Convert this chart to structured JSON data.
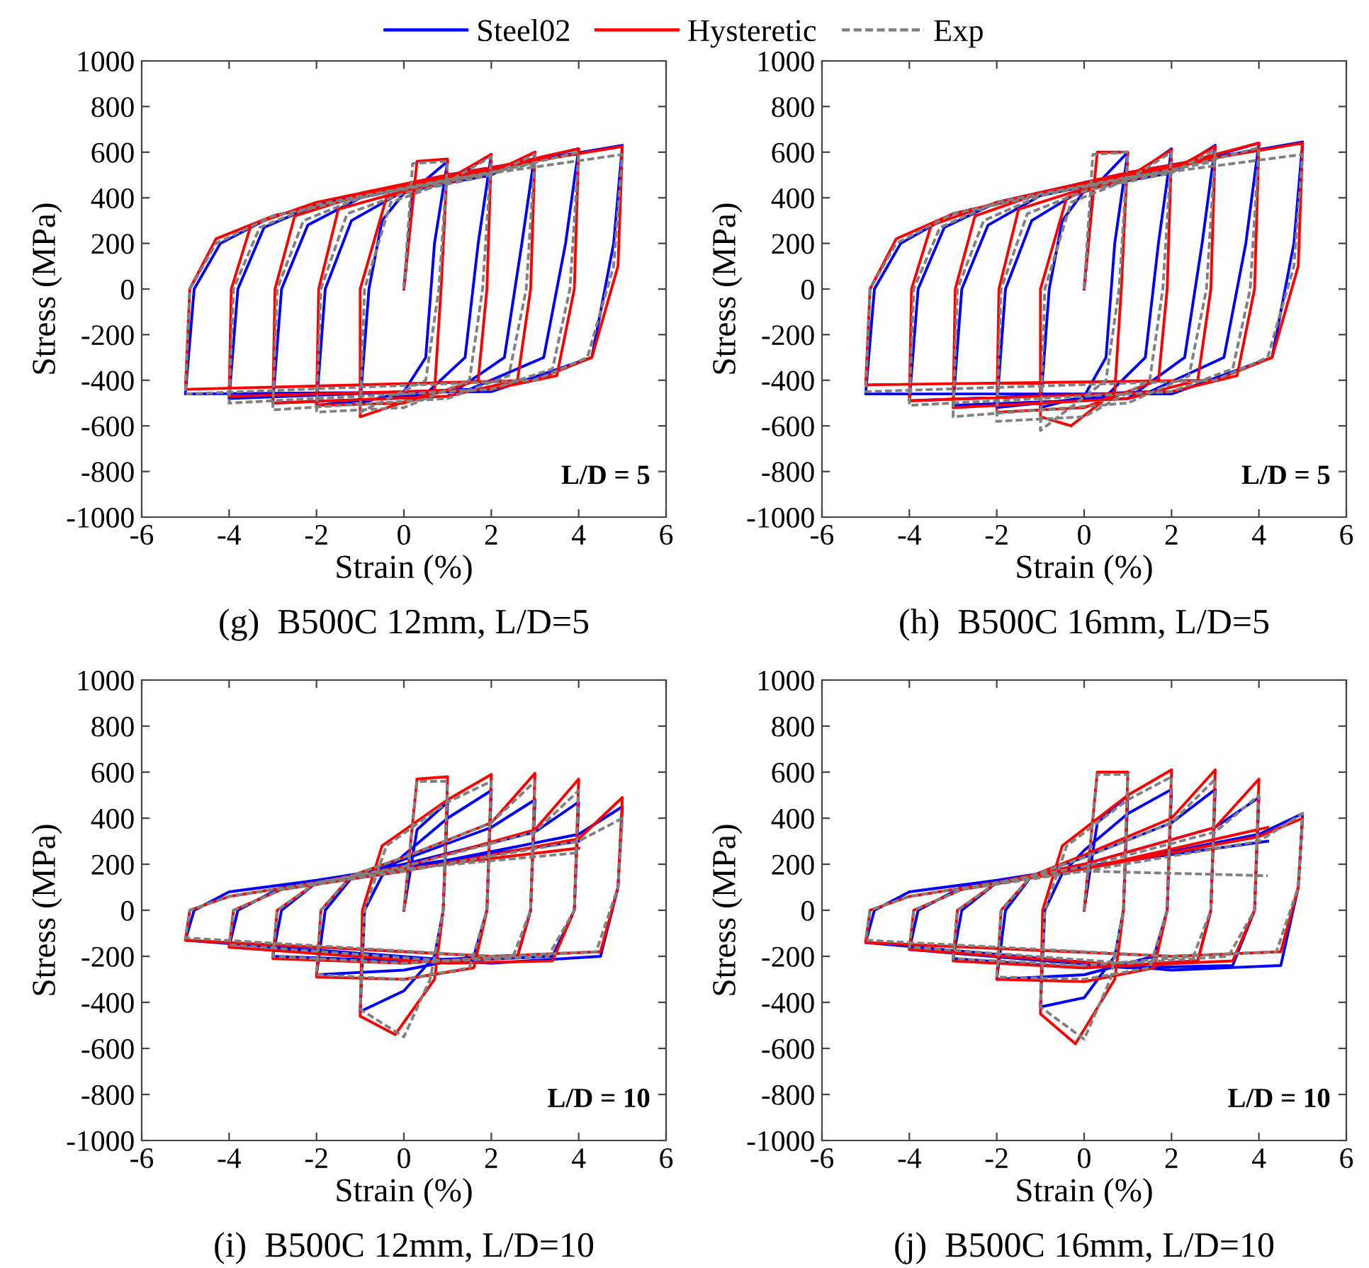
{
  "chart_data": [
    {
      "type": "line",
      "title": "(g)  B500C 12mm, L/D=5",
      "xlabel": "Strain (%)",
      "ylabel": "Stress (MPa)",
      "annotations": [
        "L/D = 5"
      ],
      "xlim": [
        -6,
        6
      ],
      "xticks": [
        -6,
        -4,
        -2,
        0,
        2,
        4,
        6
      ],
      "ylim": [
        -1000,
        1000
      ],
      "yticks": [
        -1000,
        -800,
        -600,
        -400,
        -200,
        0,
        200,
        400,
        600,
        800,
        1000
      ],
      "grid": false,
      "legend": "top",
      "marker": "none",
      "series": [
        {
          "name": "Steel02",
          "color": "#0000ff",
          "line_style": "solid",
          "x": [
            0,
            0.2,
            1,
            0.7,
            0.5,
            0,
            -1,
            -0.8,
            -0.5,
            0,
            1,
            2,
            1.7,
            1.4,
            0.5,
            -2,
            -1.8,
            -1.2,
            0,
            2,
            3,
            2.7,
            2.3,
            1,
            -3,
            -2.8,
            -2.2,
            -1,
            2,
            4,
            3.7,
            3.2,
            1.5,
            -4,
            -3.8,
            -3.2,
            -2,
            1,
            5,
            4.8,
            4.3,
            2,
            -5,
            -4.8,
            -4.2,
            -3,
            0,
            3
          ],
          "values": [
            0,
            430,
            560,
            200,
            -300,
            -450,
            -500,
            0,
            300,
            420,
            470,
            590,
            200,
            -300,
            -460,
            -510,
            0,
            300,
            430,
            500,
            600,
            200,
            -300,
            -470,
            -500,
            0,
            280,
            400,
            520,
            615,
            200,
            -300,
            -440,
            -480,
            0,
            270,
            370,
            500,
            630,
            200,
            -300,
            -450,
            -460,
            0,
            200,
            320,
            450,
            560
          ]
        },
        {
          "name": "Hysteretic",
          "color": "#ff0000",
          "line_style": "solid",
          "x": [
            0,
            0.3,
            1,
            0.85,
            0.7,
            -1,
            -1,
            -0.4,
            1,
            2,
            1.9,
            1.7,
            0,
            -2,
            -1.95,
            -1.5,
            0,
            2,
            3,
            2.9,
            2.6,
            1,
            -3,
            -2.95,
            -2.5,
            -1,
            2,
            4,
            3.9,
            3.5,
            2,
            -4,
            -3.95,
            -3.5,
            -2,
            1,
            5,
            4.9,
            4.3,
            3,
            -5,
            -4.9,
            -4.3,
            -3,
            0,
            3
          ],
          "values": [
            0,
            560,
            570,
            0,
            -450,
            -560,
            0,
            400,
            480,
            590,
            0,
            -400,
            -500,
            -510,
            0,
            350,
            430,
            510,
            600,
            0,
            -400,
            -470,
            -500,
            0,
            320,
            410,
            530,
            615,
            0,
            -380,
            -440,
            -470,
            0,
            280,
            380,
            500,
            625,
            100,
            -300,
            -400,
            -440,
            0,
            220,
            320,
            450,
            560
          ]
        },
        {
          "name": "Exp",
          "color": "#808080",
          "line_style": "dashed",
          "x": [
            0,
            0.2,
            1,
            0.8,
            0.5,
            -1,
            -0.9,
            -0.3,
            1,
            2,
            1.8,
            1.5,
            0,
            -2,
            -1.9,
            -1.3,
            0,
            2,
            3,
            2.8,
            2.4,
            1,
            -3,
            -2.9,
            -2.3,
            -1,
            2,
            4,
            3.8,
            3.4,
            2,
            -4,
            -3.9,
            -3.3,
            -2,
            1,
            5,
            4.8,
            4.2,
            3,
            -5,
            -4.9,
            -4.3,
            -3,
            0,
            3
          ],
          "values": [
            0,
            550,
            560,
            0,
            -400,
            -540,
            0,
            380,
            470,
            580,
            0,
            -400,
            -520,
            -540,
            0,
            330,
            420,
            500,
            590,
            0,
            -380,
            -480,
            -530,
            0,
            300,
            400,
            510,
            600,
            0,
            -350,
            -440,
            -500,
            0,
            270,
            370,
            480,
            590,
            100,
            -300,
            -400,
            -460,
            0,
            200,
            320,
            440,
            550
          ]
        }
      ]
    },
    {
      "type": "line",
      "title": "(h)  B500C 16mm, L/D=5",
      "xlabel": "Strain (%)",
      "ylabel": "Stress (MPa)",
      "annotations": [
        "L/D = 5"
      ],
      "xlim": [
        -6,
        6
      ],
      "xticks": [
        -6,
        -4,
        -2,
        0,
        2,
        4,
        6
      ],
      "ylim": [
        -1000,
        1000
      ],
      "yticks": [
        -1000,
        -800,
        -600,
        -400,
        -200,
        0,
        200,
        400,
        600,
        800,
        1000
      ],
      "grid": false,
      "marker": "none",
      "series": [
        {
          "color": "#0000ff",
          "line_style": "solid",
          "x": [
            0,
            0.2,
            1,
            0.7,
            0.5,
            0,
            -1,
            -0.8,
            -0.5,
            0,
            1,
            2,
            1.7,
            1.4,
            0.5,
            -2,
            -1.8,
            -1.2,
            0,
            2,
            3,
            2.7,
            2.3,
            1,
            -3,
            -2.8,
            -2.2,
            -1,
            2,
            4,
            3.7,
            3.2,
            1.5,
            -4,
            -3.8,
            -3.2,
            -2,
            1,
            5,
            4.8,
            4.3,
            2,
            -5,
            -4.8,
            -4.2,
            -3,
            0,
            3
          ],
          "values": [
            0,
            440,
            600,
            200,
            -300,
            -470,
            -520,
            0,
            300,
            430,
            480,
            615,
            200,
            -300,
            -470,
            -520,
            0,
            300,
            440,
            510,
            630,
            200,
            -300,
            -480,
            -510,
            0,
            280,
            410,
            530,
            640,
            200,
            -300,
            -450,
            -490,
            0,
            270,
            380,
            510,
            645,
            200,
            -300,
            -460,
            -460,
            0,
            200,
            330,
            460,
            570
          ]
        },
        {
          "color": "#ff0000",
          "line_style": "solid",
          "x": [
            0,
            0.3,
            1,
            0.85,
            0.7,
            -0.3,
            -1,
            -1,
            -0.4,
            1,
            2,
            1.9,
            1.7,
            0,
            -2,
            -1.95,
            -1.5,
            0,
            2,
            3,
            2.9,
            2.6,
            1,
            -3,
            -2.95,
            -2.5,
            -1,
            2,
            4,
            3.9,
            3.5,
            2,
            -4,
            -3.95,
            -3.5,
            -2,
            1,
            5,
            4.9,
            4.3,
            3,
            -5,
            -4.9,
            -4.3,
            -3,
            0,
            3
          ],
          "values": [
            0,
            600,
            600,
            0,
            -450,
            -600,
            -560,
            0,
            400,
            490,
            610,
            0,
            -400,
            -520,
            -540,
            0,
            350,
            440,
            520,
            625,
            0,
            -400,
            -480,
            -520,
            0,
            320,
            420,
            540,
            640,
            0,
            -380,
            -450,
            -490,
            0,
            280,
            380,
            510,
            640,
            100,
            -300,
            -400,
            -420,
            0,
            220,
            330,
            460,
            570
          ]
        },
        {
          "color": "#808080",
          "line_style": "dashed",
          "x": [
            0,
            0.2,
            1,
            0.8,
            0.5,
            -1,
            -0.9,
            -0.3,
            1,
            2,
            1.8,
            1.5,
            0,
            -2,
            -1.9,
            -1.3,
            0,
            2,
            3,
            2.8,
            2.4,
            1,
            -3,
            -2.9,
            -2.3,
            -1,
            2,
            4,
            3.8,
            3.4,
            2,
            -4,
            -3.9,
            -3.3,
            -2,
            1,
            5,
            4.8,
            4.2,
            3,
            -5,
            -4.9,
            -4.3,
            -3,
            0,
            3
          ],
          "values": [
            0,
            590,
            600,
            0,
            -400,
            -620,
            0,
            380,
            480,
            600,
            0,
            -400,
            -560,
            -580,
            0,
            330,
            430,
            510,
            610,
            0,
            -380,
            -500,
            -560,
            0,
            300,
            410,
            520,
            620,
            0,
            -350,
            -450,
            -510,
            0,
            270,
            380,
            490,
            590,
            100,
            -300,
            -400,
            -450,
            0,
            200,
            330,
            450,
            560
          ]
        }
      ]
    },
    {
      "type": "line",
      "title": "(i)  B500C 12mm, L/D=10",
      "xlabel": "Strain (%)",
      "ylabel": "Stress (MPa)",
      "annotations": [
        "L/D = 10"
      ],
      "xlim": [
        -6,
        6
      ],
      "xticks": [
        -6,
        -4,
        -2,
        0,
        2,
        4,
        6
      ],
      "ylim": [
        -1000,
        1000
      ],
      "yticks": [
        -1000,
        -800,
        -600,
        -400,
        -200,
        0,
        200,
        400,
        600,
        800,
        1000
      ],
      "grid": false,
      "marker": "none",
      "series": [
        {
          "color": "#0000ff",
          "line_style": "solid",
          "x": [
            0,
            0.3,
            1,
            0.9,
            0.7,
            0,
            -1,
            -0.9,
            -0.5,
            0,
            1,
            2,
            1.9,
            1.6,
            0,
            -2,
            -1.8,
            -1.2,
            0,
            2,
            3,
            2.9,
            2.6,
            0,
            -3,
            -2.8,
            -2,
            0,
            3,
            4,
            3.9,
            3.4,
            1,
            -4,
            -3.8,
            -2.8,
            0,
            4,
            5,
            4.9,
            4.5,
            2,
            -5,
            -4.8,
            -4,
            -2,
            0,
            4
          ],
          "values": [
            0,
            350,
            470,
            0,
            -200,
            -350,
            -440,
            0,
            150,
            240,
            400,
            520,
            0,
            -200,
            -260,
            -280,
            0,
            140,
            220,
            360,
            480,
            0,
            -200,
            -220,
            -200,
            0,
            120,
            200,
            340,
            470,
            0,
            -200,
            -220,
            -160,
            0,
            100,
            180,
            330,
            450,
            100,
            -200,
            -230,
            -130,
            0,
            80,
            130,
            190,
            300
          ]
        },
        {
          "color": "#ff0000",
          "line_style": "solid",
          "x": [
            0,
            0.3,
            1,
            0.9,
            0.7,
            -0.2,
            -1,
            -0.95,
            -0.5,
            1,
            2,
            1.9,
            1.6,
            0,
            -2,
            -1.9,
            -1.2,
            0,
            2,
            3,
            2.9,
            2.6,
            0,
            -3,
            -2.9,
            -2,
            0,
            3,
            4,
            3.9,
            3.4,
            1,
            -4,
            -3.9,
            -2.8,
            0,
            4,
            5,
            4.9,
            4.5,
            2,
            -5,
            -4.9,
            -4,
            -2,
            0,
            4
          ],
          "values": [
            0,
            570,
            580,
            0,
            -300,
            -540,
            -460,
            0,
            280,
            480,
            590,
            0,
            -250,
            -300,
            -290,
            0,
            150,
            230,
            380,
            595,
            0,
            -200,
            -230,
            -210,
            0,
            120,
            190,
            350,
            570,
            0,
            -220,
            -230,
            -160,
            0,
            90,
            170,
            310,
            490,
            100,
            -180,
            -200,
            -130,
            0,
            60,
            120,
            180,
            270
          ]
        },
        {
          "color": "#808080",
          "line_style": "dashed",
          "x": [
            0,
            0.3,
            1,
            0.9,
            0.6,
            0,
            -1,
            -0.9,
            -0.4,
            1,
            2,
            1.9,
            1.5,
            0,
            -2,
            -1.9,
            -1.2,
            0,
            2,
            3,
            2.9,
            2.5,
            0,
            -3,
            -2.9,
            -2,
            0,
            3,
            4,
            3.9,
            3.3,
            1,
            -4,
            -3.9,
            -2.8,
            0,
            4,
            5,
            4.9,
            4.4,
            2,
            -5,
            -4.9,
            -4,
            -2,
            0,
            4
          ],
          "values": [
            0,
            560,
            560,
            0,
            -300,
            -550,
            -430,
            0,
            280,
            470,
            560,
            0,
            -250,
            -300,
            -280,
            0,
            150,
            230,
            380,
            560,
            0,
            -200,
            -230,
            -200,
            0,
            120,
            190,
            340,
            520,
            0,
            -200,
            -220,
            -150,
            0,
            90,
            170,
            300,
            400,
            100,
            -180,
            -200,
            -120,
            0,
            60,
            120,
            180,
            250
          ]
        }
      ]
    },
    {
      "type": "line",
      "title": "(j)  B500C 16mm, L/D=10",
      "xlabel": "Strain (%)",
      "ylabel": "Stress (MPa)",
      "annotations": [
        "L/D = 10"
      ],
      "xlim": [
        -6,
        6
      ],
      "xticks": [
        -6,
        -4,
        -2,
        0,
        2,
        4,
        6
      ],
      "ylim": [
        -1000,
        1000
      ],
      "yticks": [
        -1000,
        -800,
        -600,
        -400,
        -200,
        0,
        200,
        400,
        600,
        800,
        1000
      ],
      "grid": false,
      "marker": "none",
      "series": [
        {
          "color": "#0000ff",
          "line_style": "solid",
          "x": [
            0,
            0.3,
            1,
            0.9,
            0.7,
            0,
            -1,
            -0.9,
            -0.5,
            0,
            1,
            2,
            1.9,
            1.6,
            0,
            -2,
            -1.8,
            -1.2,
            0,
            2,
            3,
            2.9,
            2.6,
            0,
            -3,
            -2.8,
            -2,
            0,
            3,
            4,
            3.9,
            3.4,
            1,
            -4,
            -3.8,
            -2.8,
            0,
            4,
            5,
            4.9,
            4.5,
            2,
            -5,
            -4.8,
            -4,
            -2,
            0,
            4.2
          ],
          "values": [
            0,
            380,
            500,
            0,
            -200,
            -380,
            -420,
            0,
            160,
            260,
            420,
            525,
            0,
            -200,
            -280,
            -300,
            0,
            150,
            230,
            380,
            525,
            0,
            -220,
            -250,
            -210,
            0,
            120,
            200,
            360,
            490,
            0,
            -240,
            -250,
            -170,
            0,
            100,
            180,
            330,
            420,
            100,
            -240,
            -260,
            -140,
            0,
            80,
            130,
            190,
            300
          ]
        },
        {
          "color": "#ff0000",
          "line_style": "solid",
          "x": [
            0,
            0.3,
            1,
            0.9,
            0.7,
            -0.2,
            -1,
            -0.95,
            -0.5,
            1,
            2,
            1.9,
            1.6,
            0,
            -2,
            -1.9,
            -1.2,
            0,
            2,
            3,
            2.9,
            2.6,
            0,
            -3,
            -2.9,
            -2,
            0,
            3,
            4,
            3.9,
            3.4,
            1,
            -4,
            -3.9,
            -2.8,
            0,
            4,
            5,
            4.9,
            4.5,
            2,
            -5,
            -4.9,
            -4,
            -2,
            0,
            4.2
          ],
          "values": [
            0,
            600,
            600,
            0,
            -300,
            -580,
            -450,
            0,
            280,
            500,
            610,
            0,
            -250,
            -310,
            -300,
            0,
            150,
            240,
            400,
            610,
            0,
            -220,
            -250,
            -220,
            0,
            120,
            200,
            360,
            570,
            0,
            -220,
            -240,
            -170,
            0,
            90,
            180,
            320,
            400,
            100,
            -180,
            -200,
            -140,
            0,
            60,
            120,
            180,
            360
          ]
        },
        {
          "color": "#808080",
          "line_style": "dashed",
          "x": [
            0,
            0.3,
            1,
            0.9,
            0.6,
            0,
            -1,
            -0.9,
            -0.4,
            1,
            2,
            1.9,
            1.5,
            0,
            -2,
            -1.9,
            -1.2,
            0,
            2,
            3,
            2.9,
            2.5,
            0,
            -3,
            -2.9,
            -2,
            0,
            3,
            4,
            3.9,
            3.3,
            1,
            -4,
            -3.9,
            -2.8,
            0,
            4,
            5,
            4.9,
            4.4,
            2,
            -5,
            -4.9,
            -4,
            -2,
            0,
            4.2
          ],
          "values": [
            0,
            590,
            590,
            0,
            -300,
            -560,
            -420,
            0,
            280,
            480,
            580,
            0,
            -250,
            -300,
            -290,
            0,
            150,
            230,
            380,
            570,
            0,
            -200,
            -240,
            -210,
            0,
            120,
            190,
            340,
            500,
            0,
            -200,
            -230,
            -160,
            0,
            90,
            170,
            300,
            420,
            100,
            -180,
            -200,
            -130,
            0,
            60,
            120,
            170,
            150
          ]
        }
      ]
    }
  ]
}
